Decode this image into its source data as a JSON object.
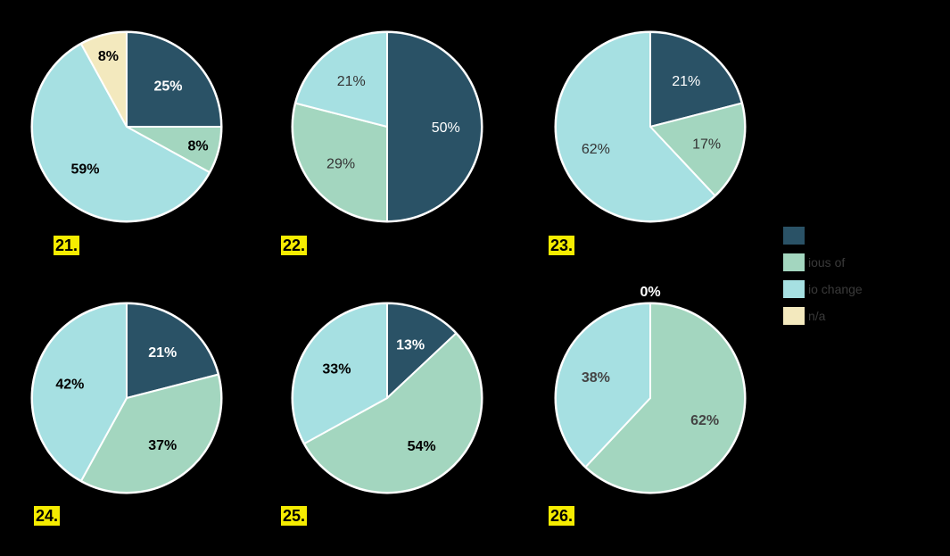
{
  "colors": {
    "dark": "#2a5266",
    "green": "#a3d6bf",
    "cyan": "#a6e0e2",
    "cream": "#f3e9be",
    "border": "#ffffff",
    "background": "#000000",
    "badge": "#f5ec00"
  },
  "legend": [
    {
      "label": "",
      "color": "#2a5266"
    },
    {
      "label": "ious of",
      "color": "#a3d6bf"
    },
    {
      "label": "io change",
      "color": "#a6e0e2"
    },
    {
      "label": "n/a",
      "color": "#f3e9be"
    }
  ],
  "chart_data": [
    {
      "type": "pie",
      "number": "21.",
      "slices": [
        {
          "label": "25%",
          "value": 25,
          "color": "#2a5266",
          "label_color": "#ffffff",
          "bold": true
        },
        {
          "label": "8%",
          "value": 8,
          "color": "#a3d6bf",
          "label_color": "#000000",
          "bold": true
        },
        {
          "label": "59%",
          "value": 59,
          "color": "#a6e0e2",
          "label_color": "#000000",
          "bold": true
        },
        {
          "label": "8%",
          "value": 8,
          "color": "#f3e9be",
          "label_color": "#000000",
          "bold": true
        }
      ]
    },
    {
      "type": "pie",
      "number": "22.",
      "slices": [
        {
          "label": "50%",
          "value": 50,
          "color": "#2a5266",
          "label_color": "#ffffff",
          "bold": false
        },
        {
          "label": "29%",
          "value": 29,
          "color": "#a3d6bf",
          "label_color": "#333333",
          "bold": false
        },
        {
          "label": "21%",
          "value": 21,
          "color": "#a6e0e2",
          "label_color": "#333333",
          "bold": false
        }
      ]
    },
    {
      "type": "pie",
      "number": "23.",
      "slices": [
        {
          "label": "21%",
          "value": 21,
          "color": "#2a5266",
          "label_color": "#ffffff",
          "bold": false
        },
        {
          "label": "17%",
          "value": 17,
          "color": "#a3d6bf",
          "label_color": "#333333",
          "bold": false
        },
        {
          "label": "62%",
          "value": 62,
          "color": "#a6e0e2",
          "label_color": "#333333",
          "bold": false
        }
      ]
    },
    {
      "type": "pie",
      "number": "24.",
      "slices": [
        {
          "label": "21%",
          "value": 21,
          "color": "#2a5266",
          "label_color": "#ffffff",
          "bold": true
        },
        {
          "label": "37%",
          "value": 37,
          "color": "#a3d6bf",
          "label_color": "#000000",
          "bold": true
        },
        {
          "label": "42%",
          "value": 42,
          "color": "#a6e0e2",
          "label_color": "#000000",
          "bold": true
        }
      ]
    },
    {
      "type": "pie",
      "number": "25.",
      "slices": [
        {
          "label": "13%",
          "value": 13,
          "color": "#2a5266",
          "label_color": "#ffffff",
          "bold": true
        },
        {
          "label": "54%",
          "value": 54,
          "color": "#a3d6bf",
          "label_color": "#000000",
          "bold": true
        },
        {
          "label": "33%",
          "value": 33,
          "color": "#a6e0e2",
          "label_color": "#000000",
          "bold": true
        }
      ]
    },
    {
      "type": "pie",
      "number": "26.",
      "top_label": "0%",
      "slices": [
        {
          "label": "0%",
          "value": 0,
          "color": "#2a5266",
          "label_color": "#ffffff",
          "bold": true
        },
        {
          "label": "62%",
          "value": 62,
          "color": "#a3d6bf",
          "label_color": "#444444",
          "bold": true
        },
        {
          "label": "38%",
          "value": 38,
          "color": "#a6e0e2",
          "label_color": "#444444",
          "bold": true
        }
      ]
    }
  ]
}
